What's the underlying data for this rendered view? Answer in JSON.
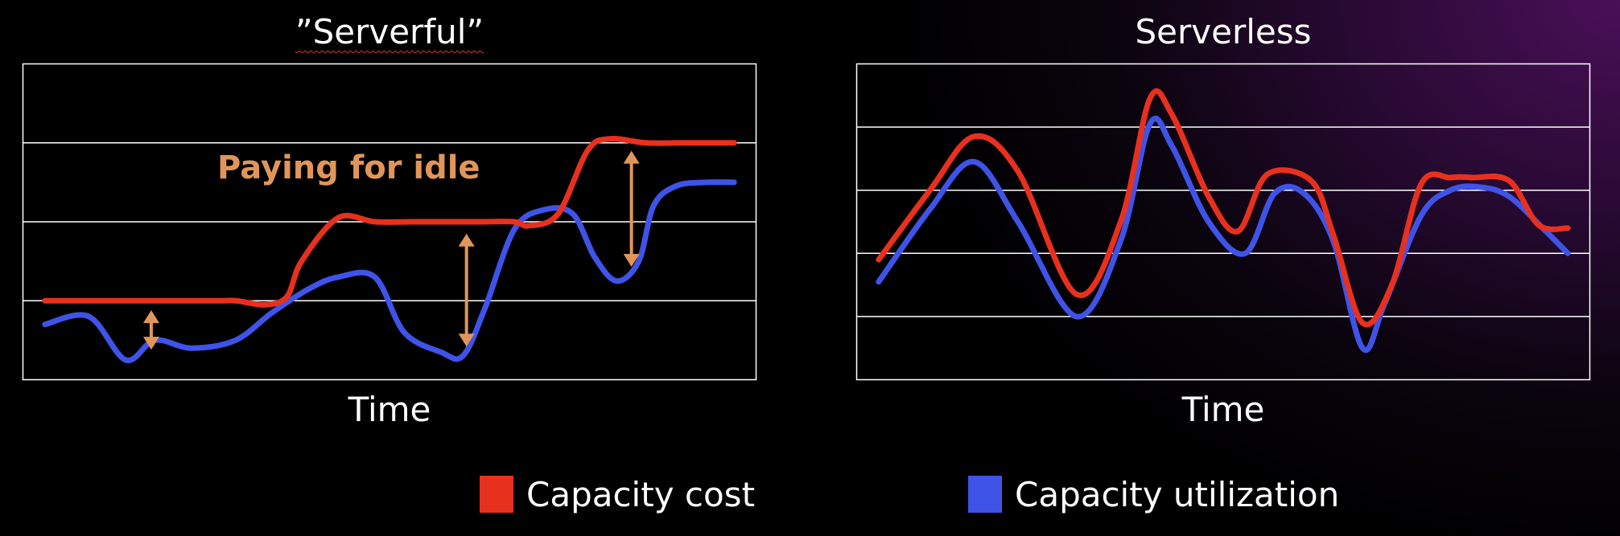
{
  "colors": {
    "cost": "#e8301e",
    "utilization": "#3f53e8",
    "annotation": "#e0965a",
    "frame": "#ffffff"
  },
  "legend": {
    "cost_label": "Capacity cost",
    "utilization_label": "Capacity utilization"
  },
  "annotation": {
    "text": "Paying for idle"
  },
  "chart_data": [
    {
      "type": "line",
      "title": "”Serverful”",
      "xlabel": "Time",
      "ylabel": "",
      "xlim": [
        0,
        100
      ],
      "ylim": [
        0,
        4
      ],
      "grid": true,
      "legend": "bottom",
      "series": [
        {
          "name": "Capacity cost",
          "x": [
            3,
            25,
            29,
            33,
            36,
            38,
            43,
            48,
            53,
            62,
            67,
            69,
            73,
            77,
            80,
            85,
            90,
            97
          ],
          "values": [
            1.0,
            1.0,
            1.0,
            0.95,
            1.05,
            1.5,
            2.05,
            2.0,
            2.0,
            2.0,
            2.0,
            1.95,
            2.1,
            2.9,
            3.05,
            3.0,
            3.0,
            3.0
          ]
        },
        {
          "name": "Capacity utilization",
          "x": [
            3,
            9,
            14,
            18,
            23,
            29,
            34,
            39,
            43,
            48,
            52,
            57,
            60,
            63,
            67,
            71,
            75,
            78,
            81,
            84,
            86,
            89,
            93,
            97
          ],
          "values": [
            0.7,
            0.8,
            0.25,
            0.5,
            0.4,
            0.5,
            0.85,
            1.15,
            1.3,
            1.3,
            0.6,
            0.35,
            0.3,
            0.9,
            1.9,
            2.15,
            2.1,
            1.55,
            1.25,
            1.5,
            2.2,
            2.45,
            2.5,
            2.5
          ]
        }
      ],
      "annotations": [
        {
          "text": "Paying for idle",
          "x": 45,
          "y": 2.6
        },
        {
          "x": 17.5,
          "from": 0.38,
          "to": 0.88
        },
        {
          "x": 60.5,
          "from": 0.42,
          "to": 1.85
        },
        {
          "x": 83,
          "from": 1.43,
          "to": 2.9
        }
      ]
    },
    {
      "type": "line",
      "title": "Serverless",
      "xlabel": "Time",
      "ylabel": "",
      "xlim": [
        0,
        100
      ],
      "ylim": [
        0,
        5
      ],
      "grid": true,
      "legend": "bottom",
      "series": [
        {
          "name": "Capacity cost",
          "x": [
            3,
            10,
            16,
            22,
            30,
            36,
            40,
            43,
            48,
            52,
            56,
            62,
            65,
            69,
            73,
            77,
            81,
            84,
            89,
            93,
            97
          ],
          "values": [
            1.9,
            3.0,
            3.85,
            3.3,
            1.35,
            2.5,
            4.45,
            4.2,
            2.9,
            2.35,
            3.25,
            3.15,
            2.3,
            0.9,
            1.5,
            3.1,
            3.2,
            3.2,
            3.15,
            2.45,
            2.4
          ]
        },
        {
          "name": "Capacity utilization",
          "x": [
            3,
            10,
            16,
            22,
            30,
            36,
            40,
            43,
            48,
            53,
            57,
            61,
            65,
            69,
            72,
            77,
            81,
            85,
            89,
            94,
            97
          ],
          "values": [
            1.55,
            2.7,
            3.45,
            2.5,
            1.0,
            2.2,
            4.05,
            3.7,
            2.5,
            2.0,
            2.95,
            2.95,
            2.2,
            0.5,
            1.2,
            2.6,
            3.0,
            3.05,
            2.9,
            2.35,
            2.0
          ]
        }
      ]
    }
  ]
}
